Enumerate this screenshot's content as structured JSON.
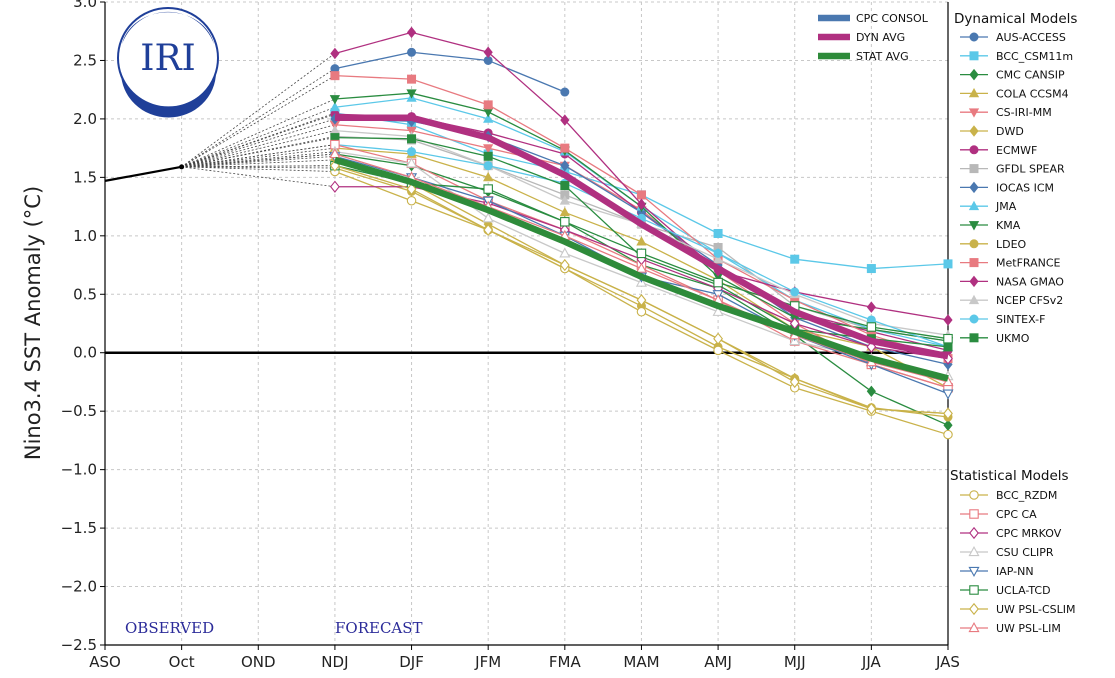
{
  "chart_data": {
    "type": "line",
    "title": "",
    "ylabel": "Nino3.4 SST Anomaly (°C)",
    "ylim": [
      -2.5,
      3.0
    ],
    "yticks": [
      -2.5,
      -2.0,
      -1.5,
      -1.0,
      -0.5,
      0.0,
      0.5,
      1.0,
      1.5,
      2.0,
      2.5,
      3.0
    ],
    "ytick_labels": [
      "−2.5",
      "−2.0",
      "−1.5",
      "−1.0",
      "−0.5",
      "0.0",
      "0.5",
      "1.0",
      "1.5",
      "2.0",
      "2.5",
      "3.0"
    ],
    "categories": [
      "ASO",
      "Oct",
      "OND",
      "NDJ",
      "DJF",
      "JFM",
      "FMA",
      "MAM",
      "AMJ",
      "MJJ",
      "JJA",
      "JAS"
    ],
    "grid": true,
    "observed_label": "OBSERVED",
    "forecast_label": "FORECAST",
    "logo_text": "IRI",
    "observed": {
      "color": "#000000",
      "values": [
        1.47,
        1.59
      ]
    },
    "consensus": [
      {
        "name": "CPC CONSOL",
        "color": "#4a78b0",
        "values": [
          null,
          null,
          null,
          null,
          null,
          null,
          null,
          null,
          null,
          null,
          null,
          null
        ]
      },
      {
        "name": "DYN AVG",
        "color": "#b03080",
        "values": [
          null,
          1.59,
          null,
          2.01,
          2.01,
          1.84,
          1.52,
          1.1,
          0.72,
          0.35,
          0.1,
          -0.03
        ]
      },
      {
        "name": "STAT AVG",
        "color": "#2e8b3a",
        "values": [
          null,
          1.59,
          null,
          1.65,
          1.46,
          1.22,
          0.95,
          0.65,
          0.4,
          0.18,
          -0.05,
          -0.22
        ]
      }
    ],
    "dynamical_title": "Dynamical Models",
    "dynamical": [
      {
        "name": "AUS-ACCESS",
        "color": "#4a78b0",
        "marker": "circle",
        "values": [
          null,
          1.59,
          null,
          2.43,
          2.57,
          2.5,
          2.23,
          null,
          null,
          null,
          null,
          null
        ]
      },
      {
        "name": "BCC_CSM11m",
        "color": "#5bc8e8",
        "marker": "square",
        "values": [
          null,
          1.59,
          null,
          2.05,
          1.95,
          1.7,
          1.55,
          1.35,
          1.02,
          0.8,
          0.72,
          0.76
        ]
      },
      {
        "name": "CMC CANSIP",
        "color": "#2a8c40",
        "marker": "diamond",
        "values": [
          null,
          1.59,
          null,
          1.7,
          1.6,
          1.38,
          1.12,
          0.75,
          0.55,
          0.15,
          -0.33,
          -0.62
        ]
      },
      {
        "name": "COLA CCSM4",
        "color": "#c9b24a",
        "marker": "triangle-up",
        "values": [
          null,
          1.59,
          null,
          1.75,
          1.7,
          1.5,
          1.2,
          0.95,
          0.62,
          0.2,
          0.05,
          -0.3
        ]
      },
      {
        "name": "CS-IRI-MM",
        "color": "#e87a80",
        "marker": "triangle-down",
        "values": [
          null,
          1.59,
          null,
          1.95,
          1.9,
          1.75,
          1.6,
          1.22,
          0.7,
          0.25,
          -0.1,
          -0.3
        ]
      },
      {
        "name": "DWD",
        "color": "#c9b24a",
        "marker": "diamond",
        "values": [
          null,
          1.59,
          null,
          1.65,
          1.45,
          1.1,
          0.75,
          0.45,
          0.12,
          -0.22,
          -0.48,
          -0.52
        ]
      },
      {
        "name": "ECMWF",
        "color": "#b03080",
        "marker": "circle",
        "values": [
          null,
          1.59,
          null,
          2.04,
          2.02,
          1.88,
          1.7,
          1.2,
          0.72,
          0.35,
          0.18,
          0.02
        ]
      },
      {
        "name": "GFDL SPEAR",
        "color": "#b8b8b8",
        "marker": "square",
        "values": [
          null,
          1.59,
          null,
          1.85,
          1.82,
          1.6,
          1.35,
          1.1,
          0.9,
          0.4,
          0.2,
          0.1
        ]
      },
      {
        "name": "IOCAS ICM",
        "color": "#4a78b0",
        "marker": "diamond",
        "values": [
          null,
          1.59,
          null,
          2.0,
          1.98,
          1.85,
          1.6,
          1.2,
          0.75,
          0.3,
          0.05,
          -0.1
        ]
      },
      {
        "name": "JMA",
        "color": "#5bc8e8",
        "marker": "triangle-up",
        "values": [
          null,
          1.59,
          null,
          2.1,
          2.18,
          2.0,
          1.72,
          1.25,
          0.85,
          0.45,
          0.2,
          0.05
        ]
      },
      {
        "name": "KMA",
        "color": "#2a8c40",
        "marker": "triangle-down",
        "values": [
          null,
          1.59,
          null,
          2.17,
          2.22,
          2.06,
          1.73,
          1.25,
          0.65,
          0.3,
          0.2,
          0.1
        ]
      },
      {
        "name": "LDEO",
        "color": "#c9b24a",
        "marker": "circle",
        "values": [
          null,
          1.59,
          null,
          1.58,
          1.38,
          1.05,
          0.72,
          0.4,
          0.05,
          -0.22,
          -0.47,
          -0.55
        ]
      },
      {
        "name": "MetFRANCE",
        "color": "#e87a80",
        "marker": "square",
        "values": [
          null,
          1.59,
          null,
          2.37,
          2.34,
          2.12,
          1.75,
          1.35,
          0.8,
          0.45,
          0.15,
          -0.05
        ]
      },
      {
        "name": "NASA GMAO",
        "color": "#b03080",
        "marker": "diamond",
        "values": [
          null,
          1.59,
          null,
          2.56,
          2.74,
          2.57,
          1.99,
          1.27,
          0.7,
          0.52,
          0.39,
          0.28
        ]
      },
      {
        "name": "NCEP CFSv2",
        "color": "#c8c8c8",
        "marker": "triangle-up",
        "values": [
          null,
          1.59,
          null,
          1.9,
          1.85,
          1.6,
          1.3,
          1.1,
          0.8,
          0.5,
          0.25,
          0.15
        ]
      },
      {
        "name": "SINTEX-F",
        "color": "#5bc8e8",
        "marker": "circle",
        "values": [
          null,
          1.59,
          null,
          1.78,
          1.72,
          1.6,
          1.45,
          1.15,
          0.85,
          0.52,
          0.28,
          0.05
        ]
      },
      {
        "name": "UKMO",
        "color": "#2a8c40",
        "marker": "square",
        "values": [
          null,
          1.59,
          null,
          1.84,
          1.83,
          1.68,
          1.43,
          0.82,
          0.58,
          0.2,
          0.12,
          0.05
        ]
      }
    ],
    "statistical_title": "Statistical Models",
    "statistical": [
      {
        "name": "BCC_RZDM",
        "color": "#c9b24a",
        "marker": "circle-open",
        "values": [
          null,
          1.59,
          null,
          1.55,
          1.3,
          1.05,
          0.72,
          0.35,
          0.02,
          -0.3,
          -0.5,
          -0.7
        ]
      },
      {
        "name": "CPC CA",
        "color": "#e87a80",
        "marker": "square-open",
        "values": [
          null,
          1.59,
          null,
          1.78,
          1.62,
          1.3,
          1.05,
          0.75,
          0.45,
          0.1,
          -0.1,
          -0.3
        ]
      },
      {
        "name": "CPC MRKOV",
        "color": "#b03080",
        "marker": "diamond-open",
        "values": [
          null,
          1.59,
          null,
          1.42,
          1.42,
          1.28,
          1.05,
          0.8,
          0.55,
          0.25,
          0.05,
          -0.05
        ]
      },
      {
        "name": "CSU CLIPR",
        "color": "#c8c8c8",
        "marker": "triangle-up-open",
        "values": [
          null,
          1.59,
          null,
          1.72,
          1.62,
          1.15,
          0.85,
          0.6,
          0.35,
          0.1,
          -0.05,
          -0.2
        ]
      },
      {
        "name": "IAP-NN",
        "color": "#4a78b0",
        "marker": "triangle-down-open",
        "values": [
          null,
          1.59,
          null,
          1.68,
          1.5,
          1.3,
          1.0,
          0.65,
          0.5,
          0.15,
          -0.1,
          -0.35
        ]
      },
      {
        "name": "UCLA-TCD",
        "color": "#2a8c40",
        "marker": "square-open",
        "values": [
          null,
          1.59,
          null,
          1.6,
          1.45,
          1.4,
          1.12,
          0.85,
          0.6,
          0.4,
          0.22,
          0.12
        ]
      },
      {
        "name": "UW PSL-CSLIM",
        "color": "#c9b24a",
        "marker": "diamond-open",
        "values": [
          null,
          1.59,
          null,
          1.6,
          1.4,
          1.05,
          0.75,
          0.45,
          0.12,
          -0.25,
          -0.48,
          -0.52
        ]
      },
      {
        "name": "UW PSL-LIM",
        "color": "#e87a80",
        "marker": "triangle-up-open",
        "values": [
          null,
          1.59,
          null,
          1.7,
          1.5,
          1.25,
          1.0,
          0.72,
          0.45,
          0.15,
          -0.08,
          -0.25
        ]
      }
    ]
  }
}
